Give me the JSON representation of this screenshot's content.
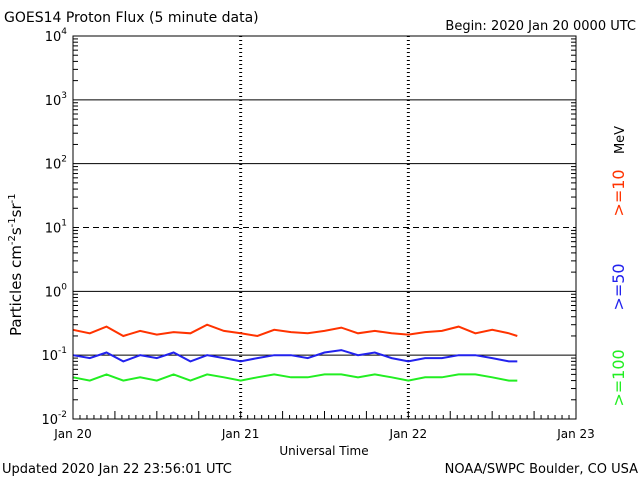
{
  "header": {
    "title": "GOES14 Proton Flux (5 minute data)",
    "begin": "Begin: 2020 Jan 20 0000 UTC"
  },
  "footer": {
    "updated": "Updated 2020 Jan 22 23:56:01 UTC",
    "credit": "NOAA/SWPC Boulder, CO USA"
  },
  "axes": {
    "xlabel": "Universal Time",
    "ylabel_main": "Particles cm",
    "ylabel_sup1": "-2",
    "ylabel_mid1": "s",
    "ylabel_sup2": "-1",
    "ylabel_mid2": "sr",
    "ylabel_sup3": "-1",
    "x_ticks": [
      "Jan 20",
      "Jan 21",
      "Jan 22",
      "Jan 23"
    ],
    "y_tick_base": "10",
    "y_tick_exps": [
      "-2",
      "-1",
      "0",
      "1",
      "2",
      "3",
      "4"
    ]
  },
  "legend": {
    "unit": "MeV",
    "items": [
      {
        "label": ">=10",
        "color": "#ff3300"
      },
      {
        "label": ">=50",
        "color": "#2222ee"
      },
      {
        "label": ">=100",
        "color": "#22ee22"
      }
    ]
  },
  "chart_data": {
    "type": "line",
    "title": "GOES14 Proton Flux (5 minute data)",
    "xlabel": "Universal Time",
    "ylabel": "Particles cm-2 s-1 sr-1",
    "x_scale": "days since 2020 Jan 20 0000 UTC",
    "xlim": [
      0,
      3
    ],
    "y_scale": "log",
    "ylim": [
      0.01,
      10000
    ],
    "grid": true,
    "dashed_gridline": 10,
    "legend_position": "right",
    "x": [
      0.0,
      0.1,
      0.2,
      0.3,
      0.4,
      0.5,
      0.6,
      0.7,
      0.8,
      0.9,
      1.0,
      1.1,
      1.2,
      1.3,
      1.4,
      1.5,
      1.6,
      1.7,
      1.8,
      1.9,
      2.0,
      2.1,
      2.2,
      2.3,
      2.4,
      2.5,
      2.6,
      2.65
    ],
    "series": [
      {
        "name": ">=10",
        "color": "#ff3300",
        "values": [
          0.25,
          0.22,
          0.28,
          0.2,
          0.24,
          0.21,
          0.23,
          0.22,
          0.3,
          0.24,
          0.22,
          0.2,
          0.25,
          0.23,
          0.22,
          0.24,
          0.27,
          0.22,
          0.24,
          0.22,
          0.21,
          0.23,
          0.24,
          0.28,
          0.22,
          0.25,
          0.22,
          0.2
        ]
      },
      {
        "name": ">=50",
        "color": "#2222ee",
        "values": [
          0.1,
          0.09,
          0.11,
          0.08,
          0.1,
          0.09,
          0.11,
          0.08,
          0.1,
          0.09,
          0.08,
          0.09,
          0.1,
          0.1,
          0.09,
          0.11,
          0.12,
          0.1,
          0.11,
          0.09,
          0.08,
          0.09,
          0.09,
          0.1,
          0.1,
          0.09,
          0.08,
          0.08
        ]
      },
      {
        "name": ">=100",
        "color": "#22ee22",
        "values": [
          0.045,
          0.04,
          0.05,
          0.04,
          0.045,
          0.04,
          0.05,
          0.04,
          0.05,
          0.045,
          0.04,
          0.045,
          0.05,
          0.045,
          0.045,
          0.05,
          0.05,
          0.045,
          0.05,
          0.045,
          0.04,
          0.045,
          0.045,
          0.05,
          0.05,
          0.045,
          0.04,
          0.04
        ]
      }
    ]
  }
}
